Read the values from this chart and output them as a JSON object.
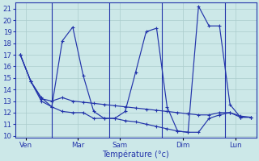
{
  "xlabel": "Température (°c)",
  "background_color": "#cce8e8",
  "grid_color": "#aacccc",
  "line_color": "#2233aa",
  "ylim": [
    9.8,
    21.5
  ],
  "yticks": [
    10,
    11,
    12,
    13,
    14,
    15,
    16,
    17,
    18,
    19,
    20,
    21
  ],
  "day_labels": [
    "Ven",
    "Mar",
    "Sam",
    "Dim",
    "Lun"
  ],
  "day_tick_x": [
    0.5,
    5.5,
    9.5,
    15.5,
    20.5
  ],
  "vline_x": [
    3.0,
    8.5,
    13.5,
    19.5
  ],
  "n_points": 23,
  "series_max": [
    17.0,
    14.7,
    13.3,
    12.5,
    18.2,
    19.4,
    15.2,
    12.1,
    11.5,
    11.5,
    12.1,
    15.5,
    19.0,
    19.3,
    12.5,
    10.4,
    10.3,
    21.2,
    19.5,
    19.5,
    12.7,
    11.6,
    11.6
  ],
  "series_min": [
    17.0,
    14.7,
    13.0,
    12.5,
    12.1,
    12.0,
    12.0,
    11.5,
    11.5,
    11.5,
    11.3,
    11.2,
    11.0,
    10.8,
    10.6,
    10.4,
    10.3,
    10.3,
    11.5,
    11.8,
    12.0,
    11.6,
    11.6
  ],
  "series_mean": [
    17.0,
    14.7,
    13.2,
    13.0,
    13.3,
    13.0,
    12.9,
    12.8,
    12.7,
    12.6,
    12.5,
    12.4,
    12.3,
    12.2,
    12.1,
    12.0,
    11.9,
    11.8,
    11.8,
    12.0,
    12.0,
    11.7,
    11.6
  ]
}
